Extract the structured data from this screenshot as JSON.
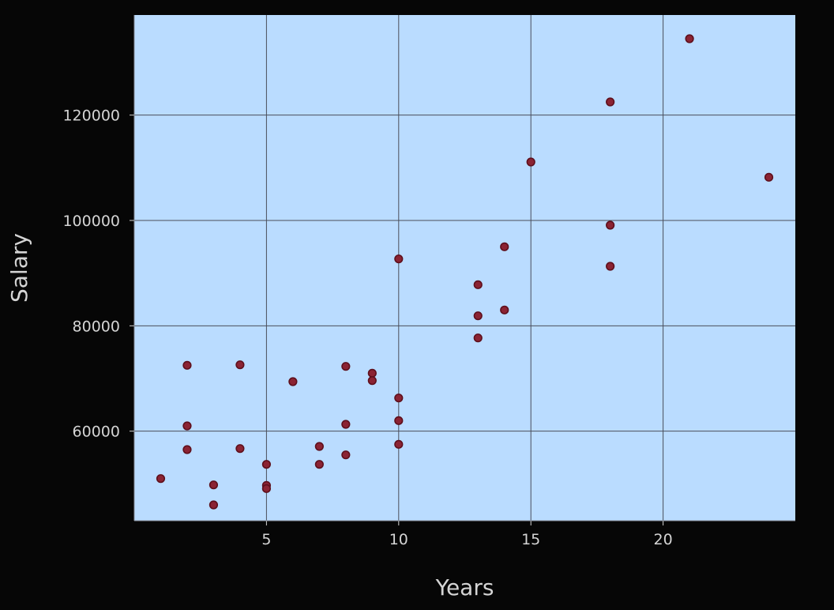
{
  "colors": {
    "figure_background": "#060606",
    "plot_background": "#badcff",
    "grid": "#4a4e5a",
    "text": "#d4d4d4",
    "marker_fill": "#8b2333",
    "marker_edge": "#5e0f1c"
  },
  "chart_data": {
    "type": "scatter",
    "title": "",
    "xlabel": "Years",
    "ylabel": "Salary",
    "xlim": [
      0,
      25
    ],
    "ylim": [
      43000,
      139000
    ],
    "grid": true,
    "xticks": [
      5,
      10,
      15,
      20
    ],
    "yticks": [
      60000,
      80000,
      100000,
      120000
    ],
    "xtick_labels": [
      "5",
      "10",
      "15",
      "20"
    ],
    "ytick_labels": [
      "60000",
      "80000",
      "100000",
      "120000"
    ],
    "series": [
      {
        "x": [
          1,
          2,
          2,
          2,
          3,
          3,
          4,
          4,
          5,
          5,
          5,
          6,
          7,
          7,
          8,
          8,
          8,
          9,
          9,
          10,
          10,
          10,
          10,
          13,
          13,
          13,
          14,
          14,
          15,
          18,
          18,
          18,
          21,
          24
        ],
        "y": [
          51000,
          72500,
          61000,
          56500,
          49800,
          46000,
          72600,
          56700,
          53700,
          49700,
          49100,
          69400,
          57100,
          53700,
          72300,
          61300,
          55500,
          71000,
          69600,
          92700,
          66300,
          62000,
          57500,
          87800,
          81900,
          77700,
          95000,
          83000,
          111100,
          122500,
          99100,
          91300,
          134500,
          108200
        ]
      }
    ]
  }
}
